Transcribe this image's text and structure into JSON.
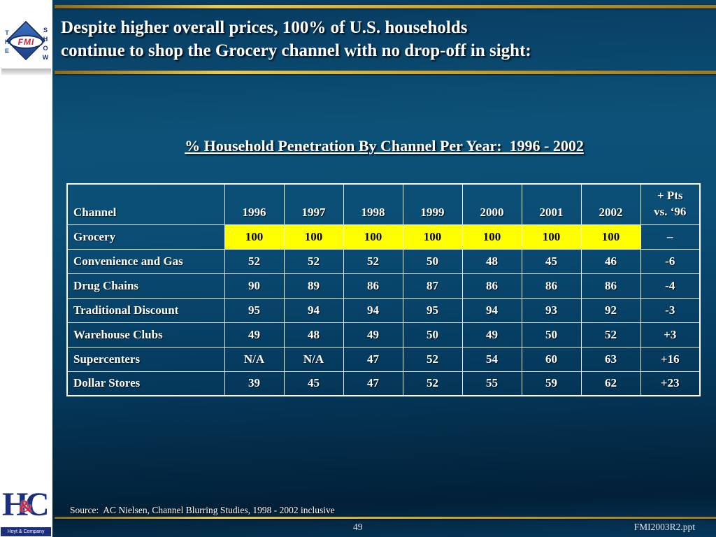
{
  "header": {
    "title_line1": "Despite higher overall prices, 100% of U.S. households",
    "title_line2": "continue to shop the Grocery channel with no drop-off in sight:"
  },
  "section": {
    "heading": "% Household Penetration By Channel Per Year:  1996 - 2002"
  },
  "chart_data": {
    "type": "table",
    "title": "% Household Penetration By Channel Per Year: 1996 - 2002",
    "columns": {
      "channel": "Channel",
      "years": [
        "1996",
        "1997",
        "1998",
        "1999",
        "2000",
        "2001",
        "2002"
      ],
      "delta_line1": "+ Pts",
      "delta_line2": "vs. ‘96"
    },
    "rows": [
      {
        "channel": "Grocery",
        "values": [
          "100",
          "100",
          "100",
          "100",
          "100",
          "100",
          "100"
        ],
        "delta": "–",
        "highlight": true
      },
      {
        "channel": "Convenience and Gas",
        "values": [
          "52",
          "52",
          "52",
          "50",
          "48",
          "45",
          "46"
        ],
        "delta": "-6",
        "highlight": false
      },
      {
        "channel": "Drug Chains",
        "values": [
          "90",
          "89",
          "86",
          "87",
          "86",
          "86",
          "86"
        ],
        "delta": "-4",
        "highlight": false
      },
      {
        "channel": "Traditional Discount",
        "values": [
          "95",
          "94",
          "94",
          "95",
          "94",
          "93",
          "92"
        ],
        "delta": "-3",
        "highlight": false
      },
      {
        "channel": "Warehouse Clubs",
        "values": [
          "49",
          "48",
          "49",
          "50",
          "49",
          "50",
          "52"
        ],
        "delta": "+3",
        "highlight": false
      },
      {
        "channel": "Supercenters",
        "values": [
          "N/A",
          "N/A",
          "47",
          "52",
          "54",
          "60",
          "63"
        ],
        "delta": "+16",
        "highlight": false
      },
      {
        "channel": "Dollar Stores",
        "values": [
          "39",
          "45",
          "47",
          "52",
          "55",
          "59",
          "62"
        ],
        "delta": "+23",
        "highlight": false
      }
    ],
    "highlight_color": "#ffff00"
  },
  "footer": {
    "source": "Source:  AC Nielsen, Channel Blurring Studies, 1998 - 2002 inclusive",
    "page_number": "49",
    "filename": "FMI2003R2.ppt"
  },
  "logos": {
    "fmi_show": {
      "the": "THE",
      "name": "FMI",
      "show": "SHOW"
    },
    "hoyt": {
      "h": "H",
      "amp": "&",
      "c": "C",
      "caption": "Hoyt & Company"
    }
  },
  "colors": {
    "slide_top": "#0c5278",
    "slide_bottom": "#022037",
    "gold": "#caa22e",
    "highlight": "#ffff00",
    "title_text": "#ffffff"
  }
}
